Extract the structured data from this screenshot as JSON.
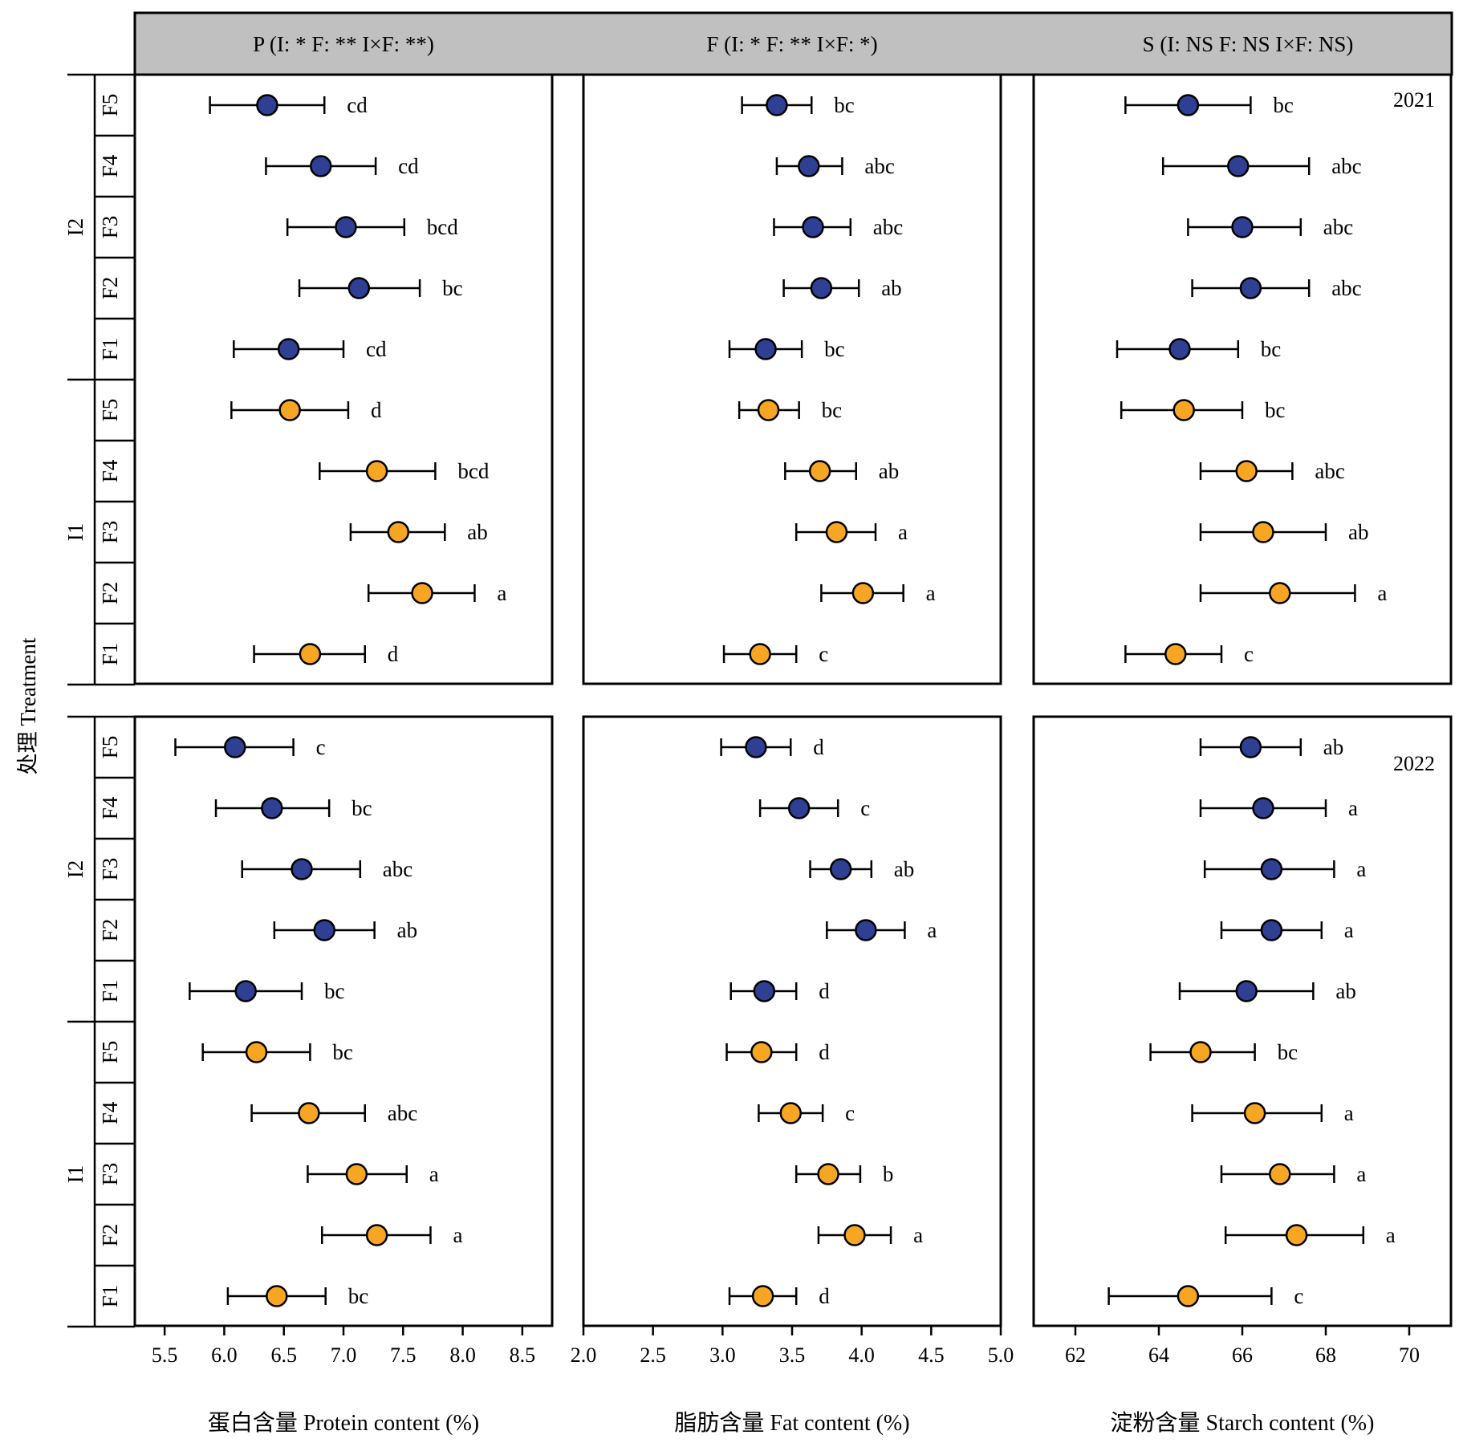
{
  "figure": {
    "y_axis_title": "处理 Treatment",
    "row_labels": [
      "2021",
      "2022"
    ],
    "group_labels": [
      "I2",
      "I1"
    ],
    "level_labels": [
      "F5",
      "F4",
      "F3",
      "F2",
      "F1"
    ],
    "colors": {
      "I2": "#2e3f94",
      "I1": "#f6a623",
      "header_bg": "#c0c0c0"
    }
  },
  "chart_data": [
    {
      "type": "scatter",
      "title": "P (I: *    F: **    I×F: **)",
      "xlabel": "蛋白含量 Protein content (%)",
      "xlim": [
        5.25,
        8.75
      ],
      "xticks": [
        "5.5",
        "6.0",
        "6.5",
        "7.0",
        "7.5",
        "8.0",
        "8.5"
      ],
      "series": [
        {
          "year": "2021",
          "points": [
            {
              "group": "I2",
              "level": "F5",
              "mean": 6.36,
              "low": 5.88,
              "high": 6.84,
              "letter": "cd"
            },
            {
              "group": "I2",
              "level": "F4",
              "mean": 6.81,
              "low": 6.35,
              "high": 7.27,
              "letter": "cd"
            },
            {
              "group": "I2",
              "level": "F3",
              "mean": 7.02,
              "low": 6.53,
              "high": 7.51,
              "letter": "bcd"
            },
            {
              "group": "I2",
              "level": "F2",
              "mean": 7.13,
              "low": 6.63,
              "high": 7.64,
              "letter": "bc"
            },
            {
              "group": "I2",
              "level": "F1",
              "mean": 6.54,
              "low": 6.08,
              "high": 7.0,
              "letter": "cd"
            },
            {
              "group": "I1",
              "level": "F5",
              "mean": 6.55,
              "low": 6.06,
              "high": 7.04,
              "letter": "d"
            },
            {
              "group": "I1",
              "level": "F4",
              "mean": 7.28,
              "low": 6.8,
              "high": 7.77,
              "letter": "bcd"
            },
            {
              "group": "I1",
              "level": "F3",
              "mean": 7.46,
              "low": 7.06,
              "high": 7.85,
              "letter": "ab"
            },
            {
              "group": "I1",
              "level": "F2",
              "mean": 7.66,
              "low": 7.21,
              "high": 8.1,
              "letter": "a"
            },
            {
              "group": "I1",
              "level": "F1",
              "mean": 6.72,
              "low": 6.25,
              "high": 7.18,
              "letter": "d"
            }
          ]
        },
        {
          "year": "2022",
          "points": [
            {
              "group": "I2",
              "level": "F5",
              "mean": 6.09,
              "low": 5.59,
              "high": 6.58,
              "letter": "c"
            },
            {
              "group": "I2",
              "level": "F4",
              "mean": 6.4,
              "low": 5.93,
              "high": 6.88,
              "letter": "bc"
            },
            {
              "group": "I2",
              "level": "F3",
              "mean": 6.65,
              "low": 6.15,
              "high": 7.14,
              "letter": "abc"
            },
            {
              "group": "I2",
              "level": "F2",
              "mean": 6.84,
              "low": 6.42,
              "high": 7.26,
              "letter": "ab"
            },
            {
              "group": "I2",
              "level": "F1",
              "mean": 6.18,
              "low": 5.71,
              "high": 6.65,
              "letter": "bc"
            },
            {
              "group": "I1",
              "level": "F5",
              "mean": 6.27,
              "low": 5.82,
              "high": 6.72,
              "letter": "bc"
            },
            {
              "group": "I1",
              "level": "F4",
              "mean": 6.71,
              "low": 6.23,
              "high": 7.18,
              "letter": "abc"
            },
            {
              "group": "I1",
              "level": "F3",
              "mean": 7.11,
              "low": 6.7,
              "high": 7.53,
              "letter": "a"
            },
            {
              "group": "I1",
              "level": "F2",
              "mean": 7.28,
              "low": 6.82,
              "high": 7.73,
              "letter": "a"
            },
            {
              "group": "I1",
              "level": "F1",
              "mean": 6.44,
              "low": 6.03,
              "high": 6.85,
              "letter": "bc"
            }
          ]
        }
      ]
    },
    {
      "type": "scatter",
      "title": "F (I: *    F: **    I×F: *)",
      "xlabel": "脂肪含量 Fat content (%)",
      "xlim": [
        2.0,
        5.0
      ],
      "xticks": [
        "2.0",
        "2.5",
        "3.0",
        "3.5",
        "4.0",
        "4.5",
        "5.0"
      ],
      "series": [
        {
          "year": "2021",
          "points": [
            {
              "group": "I2",
              "level": "F5",
              "mean": 3.39,
              "low": 3.14,
              "high": 3.64,
              "letter": "bc"
            },
            {
              "group": "I2",
              "level": "F4",
              "mean": 3.62,
              "low": 3.39,
              "high": 3.86,
              "letter": "abc"
            },
            {
              "group": "I2",
              "level": "F3",
              "mean": 3.65,
              "low": 3.37,
              "high": 3.92,
              "letter": "abc"
            },
            {
              "group": "I2",
              "level": "F2",
              "mean": 3.71,
              "low": 3.44,
              "high": 3.98,
              "letter": "ab"
            },
            {
              "group": "I2",
              "level": "F1",
              "mean": 3.31,
              "low": 3.05,
              "high": 3.57,
              "letter": "bc"
            },
            {
              "group": "I1",
              "level": "F5",
              "mean": 3.33,
              "low": 3.12,
              "high": 3.55,
              "letter": "bc"
            },
            {
              "group": "I1",
              "level": "F4",
              "mean": 3.7,
              "low": 3.45,
              "high": 3.96,
              "letter": "ab"
            },
            {
              "group": "I1",
              "level": "F3",
              "mean": 3.82,
              "low": 3.53,
              "high": 4.1,
              "letter": "a"
            },
            {
              "group": "I1",
              "level": "F2",
              "mean": 4.01,
              "low": 3.71,
              "high": 4.3,
              "letter": "a"
            },
            {
              "group": "I1",
              "level": "F1",
              "mean": 3.27,
              "low": 3.01,
              "high": 3.53,
              "letter": "c"
            }
          ]
        },
        {
          "year": "2022",
          "points": [
            {
              "group": "I2",
              "level": "F5",
              "mean": 3.24,
              "low": 2.99,
              "high": 3.49,
              "letter": "d"
            },
            {
              "group": "I2",
              "level": "F4",
              "mean": 3.55,
              "low": 3.27,
              "high": 3.83,
              "letter": "c"
            },
            {
              "group": "I2",
              "level": "F3",
              "mean": 3.85,
              "low": 3.63,
              "high": 4.07,
              "letter": "ab"
            },
            {
              "group": "I2",
              "level": "F2",
              "mean": 4.03,
              "low": 3.75,
              "high": 4.31,
              "letter": "a"
            },
            {
              "group": "I2",
              "level": "F1",
              "mean": 3.3,
              "low": 3.06,
              "high": 3.53,
              "letter": "d"
            },
            {
              "group": "I1",
              "level": "F5",
              "mean": 3.28,
              "low": 3.03,
              "high": 3.53,
              "letter": "d"
            },
            {
              "group": "I1",
              "level": "F4",
              "mean": 3.49,
              "low": 3.26,
              "high": 3.72,
              "letter": "c"
            },
            {
              "group": "I1",
              "level": "F3",
              "mean": 3.76,
              "low": 3.53,
              "high": 3.99,
              "letter": "b"
            },
            {
              "group": "I1",
              "level": "F2",
              "mean": 3.95,
              "low": 3.69,
              "high": 4.21,
              "letter": "a"
            },
            {
              "group": "I1",
              "level": "F1",
              "mean": 3.29,
              "low": 3.05,
              "high": 3.53,
              "letter": "d"
            }
          ]
        }
      ]
    },
    {
      "type": "scatter",
      "title": "S (I: NS    F: NS    I×F: NS)",
      "xlabel": "淀粉含量 Starch content (%)",
      "xlim": [
        61.0,
        71.0
      ],
      "xticks": [
        "62",
        "64",
        "66",
        "68",
        "70"
      ],
      "series": [
        {
          "year": "2021",
          "points": [
            {
              "group": "I2",
              "level": "F5",
              "mean": 64.7,
              "low": 63.2,
              "high": 66.2,
              "letter": "bc"
            },
            {
              "group": "I2",
              "level": "F4",
              "mean": 65.9,
              "low": 64.1,
              "high": 67.6,
              "letter": "abc"
            },
            {
              "group": "I2",
              "level": "F3",
              "mean": 66.0,
              "low": 64.7,
              "high": 67.4,
              "letter": "abc"
            },
            {
              "group": "I2",
              "level": "F2",
              "mean": 66.2,
              "low": 64.8,
              "high": 67.6,
              "letter": "abc"
            },
            {
              "group": "I2",
              "level": "F1",
              "mean": 64.5,
              "low": 63.0,
              "high": 65.9,
              "letter": "bc"
            },
            {
              "group": "I1",
              "level": "F5",
              "mean": 64.6,
              "low": 63.1,
              "high": 66.0,
              "letter": "bc"
            },
            {
              "group": "I1",
              "level": "F4",
              "mean": 66.1,
              "low": 65.0,
              "high": 67.2,
              "letter": "abc"
            },
            {
              "group": "I1",
              "level": "F3",
              "mean": 66.5,
              "low": 65.0,
              "high": 68.0,
              "letter": "ab"
            },
            {
              "group": "I1",
              "level": "F2",
              "mean": 66.9,
              "low": 65.0,
              "high": 68.7,
              "letter": "a"
            },
            {
              "group": "I1",
              "level": "F1",
              "mean": 64.4,
              "low": 63.2,
              "high": 65.5,
              "letter": "c"
            }
          ]
        },
        {
          "year": "2022",
          "points": [
            {
              "group": "I2",
              "level": "F5",
              "mean": 66.2,
              "low": 65.0,
              "high": 67.4,
              "letter": "ab"
            },
            {
              "group": "I2",
              "level": "F4",
              "mean": 66.5,
              "low": 65.0,
              "high": 68.0,
              "letter": "a"
            },
            {
              "group": "I2",
              "level": "F3",
              "mean": 66.7,
              "low": 65.1,
              "high": 68.2,
              "letter": "a"
            },
            {
              "group": "I2",
              "level": "F2",
              "mean": 66.7,
              "low": 65.5,
              "high": 67.9,
              "letter": "a"
            },
            {
              "group": "I2",
              "level": "F1",
              "mean": 66.1,
              "low": 64.5,
              "high": 67.7,
              "letter": "ab"
            },
            {
              "group": "I1",
              "level": "F5",
              "mean": 65.0,
              "low": 63.8,
              "high": 66.3,
              "letter": "bc"
            },
            {
              "group": "I1",
              "level": "F4",
              "mean": 66.3,
              "low": 64.8,
              "high": 67.9,
              "letter": "a"
            },
            {
              "group": "I1",
              "level": "F3",
              "mean": 66.9,
              "low": 65.5,
              "high": 68.2,
              "letter": "a"
            },
            {
              "group": "I1",
              "level": "F2",
              "mean": 67.3,
              "low": 65.6,
              "high": 68.9,
              "letter": "a"
            },
            {
              "group": "I1",
              "level": "F1",
              "mean": 64.7,
              "low": 62.8,
              "high": 66.7,
              "letter": "c"
            }
          ]
        }
      ]
    }
  ]
}
